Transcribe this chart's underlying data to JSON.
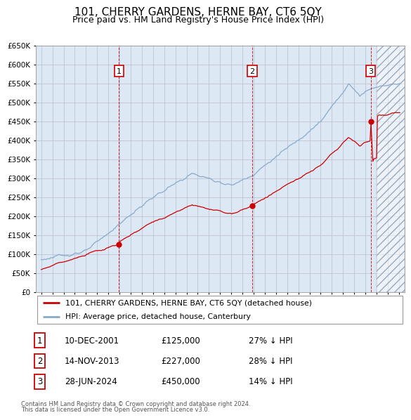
{
  "title": "101, CHERRY GARDENS, HERNE BAY, CT6 5QY",
  "subtitle": "Price paid vs. HM Land Registry's House Price Index (HPI)",
  "title_fontsize": 11,
  "subtitle_fontsize": 9,
  "sales": [
    {
      "num": 1,
      "date": "10-DEC-2001",
      "year": 2001.94,
      "price": 125000,
      "pct": "27%"
    },
    {
      "num": 2,
      "date": "14-NOV-2013",
      "year": 2013.87,
      "price": 227000,
      "pct": "28%"
    },
    {
      "num": 3,
      "date": "28-JUN-2024",
      "year": 2024.49,
      "price": 450000,
      "pct": "14%"
    }
  ],
  "legend_line1": "101, CHERRY GARDENS, HERNE BAY, CT6 5QY (detached house)",
  "legend_line2": "HPI: Average price, detached house, Canterbury",
  "footer1": "Contains HM Land Registry data © Crown copyright and database right 2024.",
  "footer2": "This data is licensed under the Open Government Licence v3.0.",
  "red_color": "#cc0000",
  "blue_color": "#88aacc",
  "bg_color": "#dde8f5",
  "grid_color": "#bbbbcc",
  "ylim": [
    0,
    650000
  ],
  "xlim_start": 1994.5,
  "xlim_end": 2027.5,
  "future_start": 2025.0,
  "yticks": [
    0,
    50000,
    100000,
    150000,
    200000,
    250000,
    300000,
    350000,
    400000,
    450000,
    500000,
    550000,
    600000,
    650000
  ]
}
